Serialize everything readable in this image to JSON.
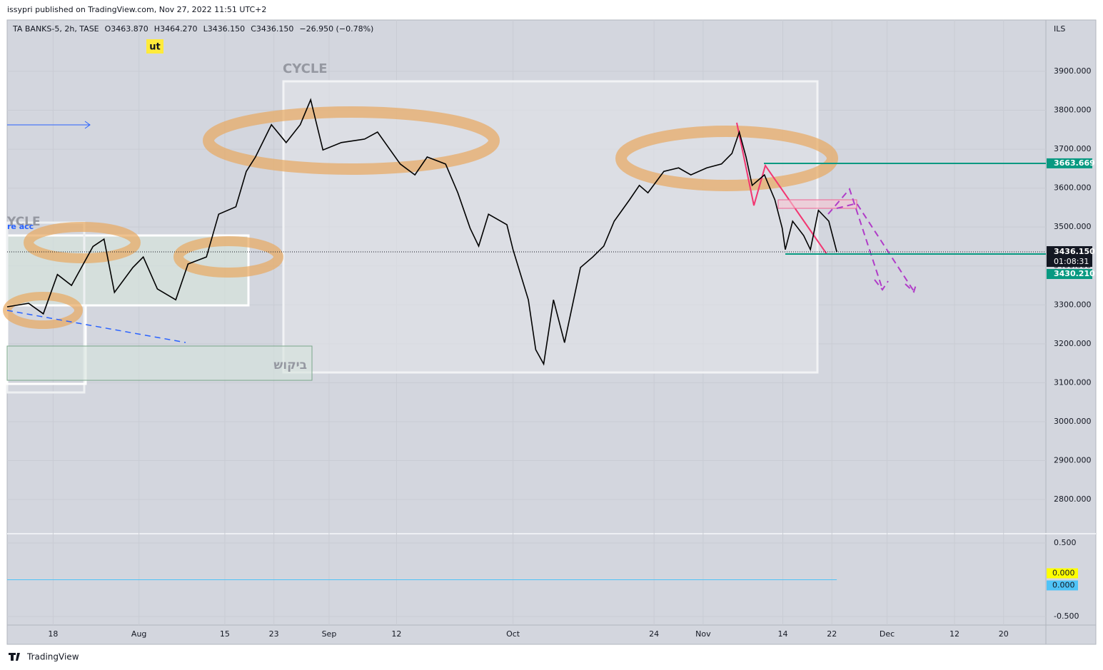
{
  "published": "issypri published on TradingView.com, Nov 27, 2022 11:51 UTC+2",
  "footer": "TradingView",
  "chart_data": [
    {
      "type": "line",
      "header_items": [
        "TA BANKS-5, 2h, TASE",
        "O3463.870",
        "H3464.270",
        "L3436.150",
        "C3436.150",
        "−26.950 (−0.78%)"
      ],
      "currency": "ILS",
      "annotations": [
        "CYCLE",
        "ut",
        "ביקוש",
        "YCLE",
        "re acc"
      ],
      "xlim": [
        10.5,
        179.9
      ],
      "xticks": [
        {
          "value": 18,
          "label": "18"
        },
        {
          "value": 32,
          "label": "Aug"
        },
        {
          "value": 46,
          "label": "15"
        },
        {
          "value": 54,
          "label": "23"
        },
        {
          "value": 63,
          "label": "Sep"
        },
        {
          "value": 74,
          "label": "12"
        },
        {
          "value": 93,
          "label": "Oct"
        },
        {
          "value": 116,
          "label": "24"
        },
        {
          "value": 124,
          "label": "Nov"
        },
        {
          "value": 137,
          "label": "14"
        },
        {
          "value": 145,
          "label": "22"
        },
        {
          "value": 154,
          "label": "Dec"
        },
        {
          "value": 165,
          "label": "12"
        },
        {
          "value": 173,
          "label": "20"
        }
      ],
      "ylim": [
        2712,
        4032
      ],
      "yticks": [
        {
          "value": 2800,
          "label": "2800.000"
        },
        {
          "value": 2900,
          "label": "2900.000"
        },
        {
          "value": 3000,
          "label": "3000.000"
        },
        {
          "value": 3100,
          "label": "3100.000"
        },
        {
          "value": 3200,
          "label": "3200.000"
        },
        {
          "value": 3300,
          "label": "3300.000"
        },
        {
          "value": 3400,
          "label": "3400.000"
        },
        {
          "value": 3500,
          "label": "3500.000"
        },
        {
          "value": 3600,
          "label": "3600.000"
        },
        {
          "value": 3700,
          "label": "3700.000"
        },
        {
          "value": 3800,
          "label": "3800.000"
        },
        {
          "value": 3900,
          "label": "3900.000"
        }
      ],
      "grid": true,
      "series": [
        {
          "color": "#000000",
          "x": [
            10.5,
            14,
            16.4,
            18.7,
            21,
            24.5,
            26.3,
            28,
            31,
            32.7,
            35,
            38,
            40,
            43,
            45,
            47.8,
            49.5,
            51,
            53.6,
            56,
            58.3,
            60,
            62,
            65,
            68.8,
            70.9,
            74.6,
            77,
            79,
            82,
            84,
            86,
            87.4,
            89,
            92,
            93,
            95.5,
            96.7,
            98,
            99.6,
            101.4,
            103,
            104,
            106,
            107.8,
            109.5,
            112,
            113.6,
            115,
            117.6,
            120,
            122,
            124.6,
            127,
            128.7,
            129.9,
            131,
            132,
            134,
            135.7,
            136.9,
            137.4,
            138.6,
            140.4,
            141.5,
            142.8,
            144.5,
            145.8
          ],
          "values": [
            3295,
            3304,
            3277,
            3378,
            3350,
            3450,
            3469,
            3332,
            3396,
            3423,
            3341,
            3313,
            3405,
            3423,
            3533,
            3552,
            3643,
            3680,
            3763,
            3717,
            3763,
            3827,
            3698,
            3717,
            3726,
            3744,
            3662,
            3634,
            3680,
            3662,
            3588,
            3497,
            3451,
            3533,
            3506,
            3442,
            3313,
            3185,
            3148,
            3313,
            3203,
            3322,
            3396,
            3423,
            3451,
            3515,
            3570,
            3607,
            3588,
            3643,
            3652,
            3634,
            3652,
            3662,
            3689,
            3744,
            3680,
            3607,
            3634,
            3570,
            3497,
            3442,
            3515,
            3478,
            3442,
            3543,
            3515,
            3436.15
          ]
        }
      ],
      "levels": [
        {
          "value": 3663.669,
          "label": "3663.669",
          "color": "#089981"
        },
        {
          "value": 3430.21,
          "label": "3430.210",
          "color": "#089981"
        }
      ],
      "last": {
        "value": 3436.15,
        "label": "3436.150",
        "countdown": "01:08:31"
      }
    },
    {
      "type": "line",
      "ylim": [
        -0.617,
        0.626
      ],
      "yticks": [
        {
          "value": 0.5,
          "label": "0.500"
        },
        {
          "value": -0.5,
          "label": "-0.500"
        }
      ],
      "series": [
        {
          "color": "#4fc3f7",
          "x": [
            10.5,
            145.8
          ],
          "values": [
            0,
            0
          ]
        }
      ],
      "last_values": [
        {
          "value": 0,
          "label": "0.000",
          "color": "#ffff00"
        },
        {
          "value": 0,
          "label": "0.000",
          "color": "#4fc3f7"
        }
      ]
    }
  ]
}
